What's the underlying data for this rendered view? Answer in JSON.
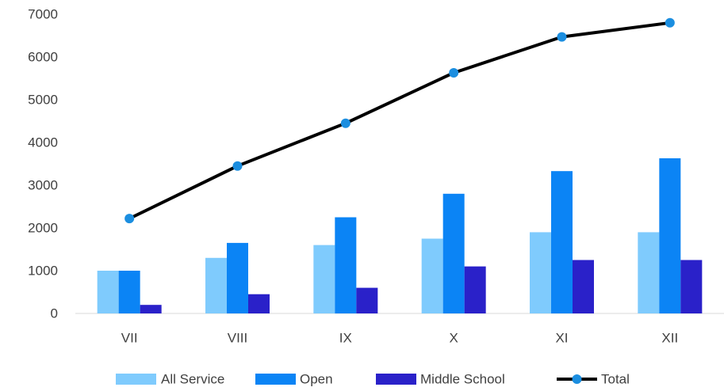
{
  "chart_data": {
    "type": "bar",
    "categories": [
      "VII",
      "VIII",
      "IX",
      "X",
      "XI",
      "XII"
    ],
    "series": [
      {
        "name": "All Service",
        "kind": "bar",
        "color": "#7fcbfd",
        "values": [
          1000,
          1300,
          1600,
          1750,
          1900,
          1900
        ]
      },
      {
        "name": "Open",
        "kind": "bar",
        "color": "#0b84f5",
        "values": [
          1000,
          1650,
          2250,
          2800,
          3330,
          3630
        ]
      },
      {
        "name": "Middle School",
        "kind": "bar",
        "color": "#2a21c9",
        "values": [
          200,
          450,
          600,
          1100,
          1250,
          1250
        ]
      },
      {
        "name": "Total",
        "kind": "line",
        "color": "#000000",
        "marker_color": "#1b8ee0",
        "values": [
          2220,
          3450,
          4450,
          5630,
          6470,
          6800
        ]
      }
    ],
    "title": "",
    "xlabel": "",
    "ylabel": "",
    "ylim": [
      0,
      7000
    ],
    "yticks": [
      0,
      1000,
      2000,
      3000,
      4000,
      5000,
      6000,
      7000
    ],
    "grid": false,
    "legend_position": "bottom"
  }
}
